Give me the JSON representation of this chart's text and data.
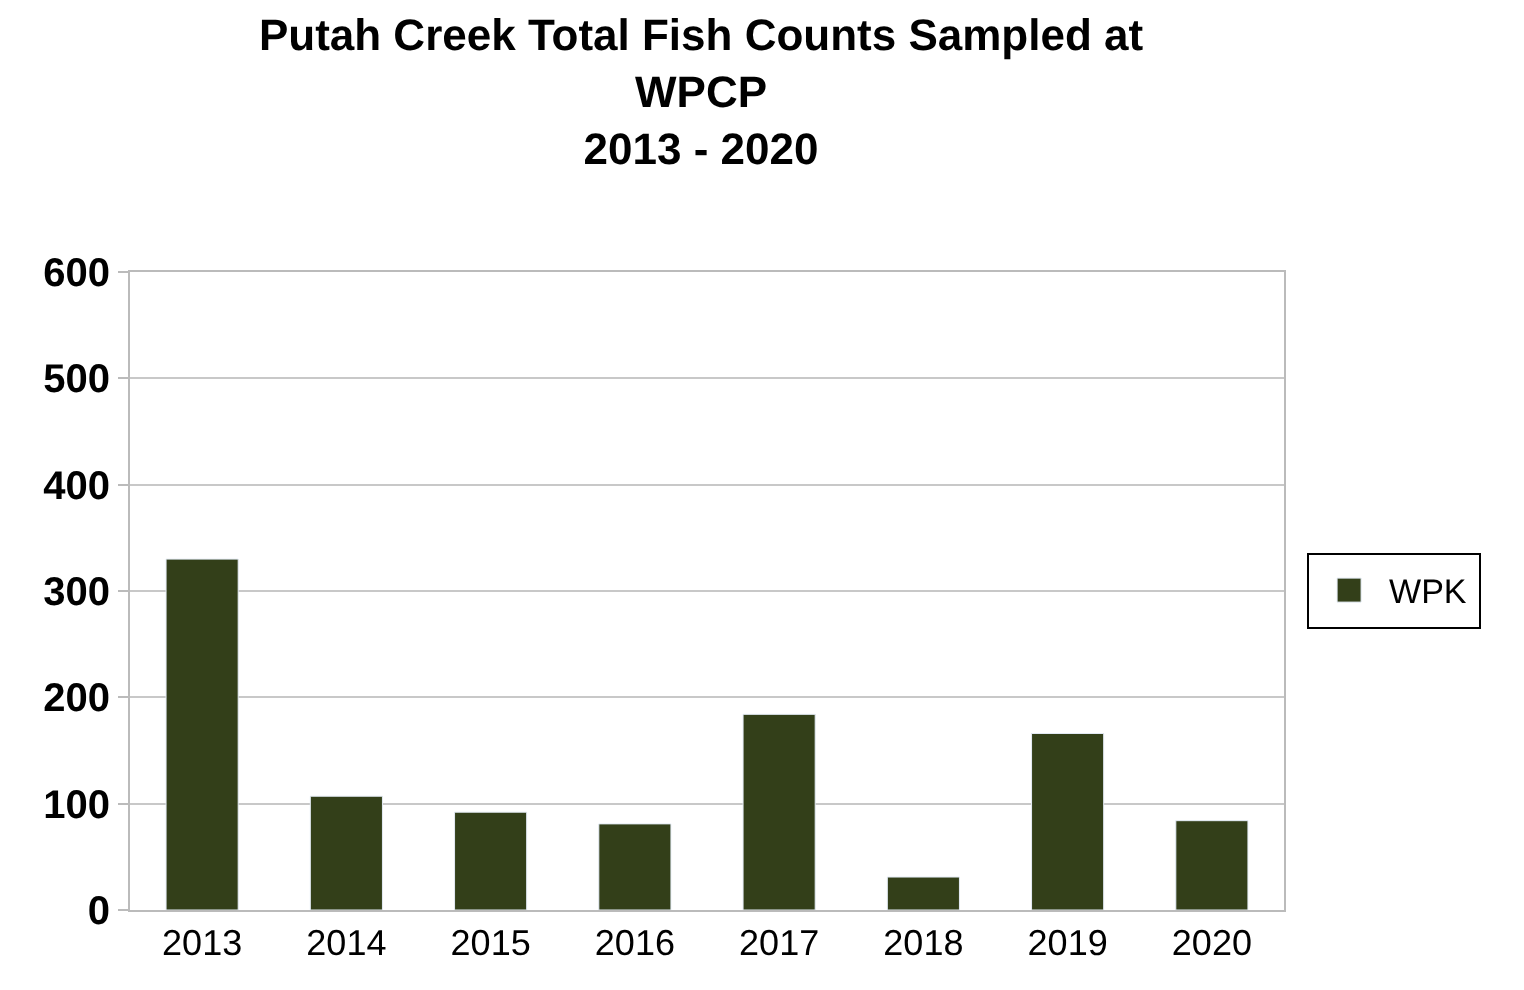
{
  "chart_data": {
    "type": "bar",
    "title": "Putah Creek Total Fish Counts Sampled at\nWPCP\n2013 - 2020",
    "categories": [
      "2013",
      "2014",
      "2015",
      "2016",
      "2017",
      "2018",
      "2019",
      "2020"
    ],
    "series": [
      {
        "name": "WPK",
        "color": "#333f19",
        "values": [
          330,
          107,
          92,
          81,
          184,
          31,
          166,
          84
        ]
      }
    ],
    "ylim": [
      0,
      600
    ],
    "yticks": [
      0,
      100,
      200,
      300,
      400,
      500,
      600
    ],
    "grid": "y",
    "legend": "right"
  }
}
